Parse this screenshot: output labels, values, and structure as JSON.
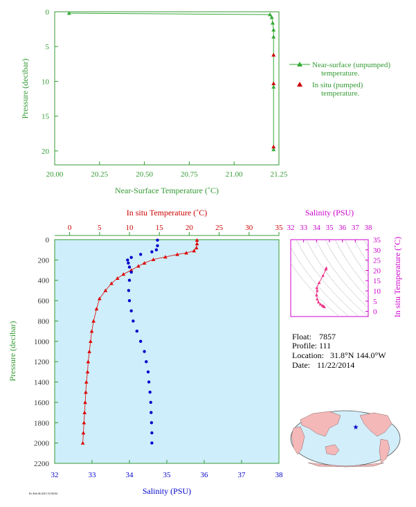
{
  "chart_data": [
    {
      "id": "near-surface",
      "type": "line",
      "xlabel": "Near-Surface Temperature (˚C)",
      "ylabel": "Pressure (decibar)",
      "xlim": [
        20.0,
        21.25
      ],
      "ylim": [
        22,
        0
      ],
      "xticks": [
        "20.00",
        "20.25",
        "20.50",
        "20.75",
        "21.00",
        "21.25"
      ],
      "yticks": [
        "0",
        "5",
        "10",
        "15",
        "20"
      ],
      "legend_position": "right",
      "legend": [
        {
          "marker": "triangle",
          "label_lines": [
            "Near-surface (unpumped)",
            "temperature."
          ],
          "color": "#33aa33"
        },
        {
          "marker": "triangle",
          "label_lines": [
            "In situ (pumped)",
            "temperature."
          ],
          "color": "#cc0000"
        }
      ],
      "series": [
        {
          "name": "Near-surface (unpumped) temperature.",
          "color": "#33aa33",
          "points": [
            [
              20.08,
              0.2
            ],
            [
              21.2,
              0.4
            ],
            [
              21.21,
              0.8
            ],
            [
              21.215,
              1.6
            ],
            [
              21.22,
              2.6
            ],
            [
              21.22,
              3.6
            ],
            [
              21.22,
              10.8
            ],
            [
              21.22,
              19.8
            ]
          ]
        },
        {
          "name": "In situ (pumped) temperature.",
          "color": "#cc0000",
          "points": [
            [
              21.22,
              6.2
            ],
            [
              21.22,
              10.3
            ],
            [
              21.22,
              19.4
            ]
          ]
        }
      ]
    },
    {
      "id": "profile",
      "type": "scatter",
      "top_axis_label": "In situ Temperature (˚C)",
      "bottom_axis_label": "Salinity (PSU)",
      "ylabel": "Pressure (decibar)",
      "temp_lim": [
        -2.5,
        35
      ],
      "temp_ticks": [
        "0",
        "5",
        "10",
        "15",
        "20",
        "25",
        "30",
        "35"
      ],
      "sal_lim": [
        32,
        38
      ],
      "sal_ticks": [
        "32",
        "33",
        "34",
        "35",
        "36",
        "37",
        "38"
      ],
      "ylim": [
        2200,
        0
      ],
      "yticks": [
        "0",
        "200",
        "400",
        "600",
        "800",
        "1000",
        "1200",
        "1400",
        "1600",
        "1800",
        "2000",
        "2200"
      ],
      "temperature_profile": {
        "color": "#dd0000",
        "points": [
          [
            21.3,
            5
          ],
          [
            21.3,
            40
          ],
          [
            21.2,
            80
          ],
          [
            20.8,
            110
          ],
          [
            19.5,
            130
          ],
          [
            18.0,
            145
          ],
          [
            16.0,
            170
          ],
          [
            14.0,
            195
          ],
          [
            12.5,
            230
          ],
          [
            11.5,
            260
          ],
          [
            10.3,
            300
          ],
          [
            9.0,
            340
          ],
          [
            8.0,
            380
          ],
          [
            7.0,
            430
          ],
          [
            6.0,
            500
          ],
          [
            5.0,
            580
          ],
          [
            4.5,
            680
          ],
          [
            4.0,
            800
          ],
          [
            3.7,
            900
          ],
          [
            3.5,
            1000
          ],
          [
            3.3,
            1100
          ],
          [
            3.1,
            1200
          ],
          [
            3.0,
            1300
          ],
          [
            2.8,
            1400
          ],
          [
            2.7,
            1500
          ],
          [
            2.6,
            1600
          ],
          [
            2.5,
            1700
          ],
          [
            2.4,
            1800
          ],
          [
            2.3,
            1900
          ],
          [
            2.2,
            2000
          ]
        ]
      },
      "salinity_profile": {
        "color": "#0000cc",
        "points": [
          [
            34.75,
            5
          ],
          [
            34.75,
            60
          ],
          [
            34.72,
            100
          ],
          [
            34.6,
            120
          ],
          [
            34.3,
            145
          ],
          [
            34.05,
            175
          ],
          [
            33.95,
            200
          ],
          [
            33.97,
            230
          ],
          [
            34.0,
            270
          ],
          [
            34.05,
            320
          ],
          [
            34.0,
            400
          ],
          [
            33.98,
            500
          ],
          [
            34.0,
            600
          ],
          [
            34.05,
            700
          ],
          [
            34.1,
            800
          ],
          [
            34.2,
            900
          ],
          [
            34.3,
            1000
          ],
          [
            34.4,
            1100
          ],
          [
            34.45,
            1200
          ],
          [
            34.5,
            1300
          ],
          [
            34.52,
            1400
          ],
          [
            34.55,
            1500
          ],
          [
            34.57,
            1600
          ],
          [
            34.58,
            1700
          ],
          [
            34.59,
            1800
          ],
          [
            34.6,
            1900
          ],
          [
            34.6,
            2000
          ]
        ]
      }
    },
    {
      "id": "ts-diagram",
      "type": "scatter",
      "xlabel": "Salinity (PSU)",
      "ylabel": "In situ Temperature (˚C)",
      "xlim": [
        32,
        38
      ],
      "xticks": [
        "32",
        "33",
        "34",
        "35",
        "36",
        "37",
        "38"
      ],
      "ylim": [
        -2.5,
        35
      ],
      "yticks": [
        "0",
        "5",
        "10",
        "15",
        "20",
        "25",
        "30",
        "35"
      ],
      "color": "#ee3388",
      "points": [
        [
          34.75,
          21.2
        ],
        [
          34.72,
          20.5
        ],
        [
          34.5,
          17.5
        ],
        [
          34.2,
          14.0
        ],
        [
          34.02,
          11.5
        ],
        [
          34.05,
          10.2
        ],
        [
          34.0,
          8.0
        ],
        [
          34.05,
          6.0
        ],
        [
          34.15,
          4.5
        ],
        [
          34.3,
          3.5
        ],
        [
          34.45,
          2.9
        ],
        [
          34.55,
          2.5
        ],
        [
          34.6,
          2.2
        ]
      ]
    },
    {
      "id": "float-info",
      "type": "table",
      "rows": [
        {
          "label": "Float:",
          "value": "7857"
        },
        {
          "label": "Profile:",
          "value": "111"
        },
        {
          "label": "Location:",
          "value": "31.8°N  144.0°W"
        },
        {
          "label": "Date:",
          "value": "11/22/2014"
        }
      ]
    }
  ],
  "footer": {
    "tag": "Fri Feb 06 2015 10:58:04"
  },
  "colors": {
    "green": "#33aa33",
    "red": "#cc0000",
    "blue": "#0000cc",
    "magenta": "#cc00cc",
    "profile_bg": "#cdeefa",
    "land": "#f4b8b8",
    "ocean": "#d2eefa"
  }
}
